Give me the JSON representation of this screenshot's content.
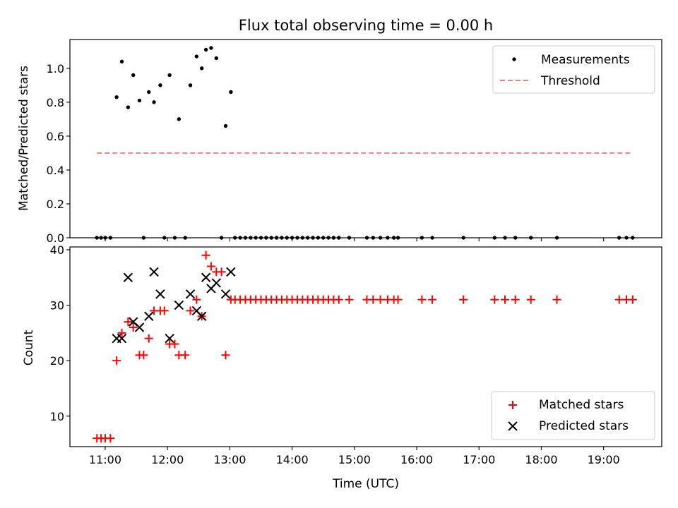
{
  "chart_data": [
    {
      "type": "scatter",
      "title": "Flux total observing time = 0.00 h",
      "xlabel": "",
      "ylabel": "Matched/Predicted stars",
      "xlim": [
        "10:26",
        "19:56"
      ],
      "ylim": [
        0.0,
        1.17
      ],
      "yticks": [
        0.0,
        0.2,
        0.4,
        0.6,
        0.8,
        1.0
      ],
      "yticklabels": [
        "0.0",
        "0.2",
        "0.4",
        "0.6",
        "0.8",
        "1.0"
      ],
      "legend": {
        "placement": "top-right",
        "entries": [
          "Measurements",
          "Threshold"
        ]
      },
      "series": [
        {
          "name": "Measurements",
          "marker": "dot",
          "color": "#000000",
          "points": [
            [
              "10:52",
              0
            ],
            [
              "10:56",
              0
            ],
            [
              "11:00",
              0
            ],
            [
              "11:05",
              0
            ],
            [
              "11:11",
              0.83
            ],
            [
              "11:16",
              1.04
            ],
            [
              "11:22",
              0.77
            ],
            [
              "11:27",
              0.96
            ],
            [
              "11:33",
              0.81
            ],
            [
              "11:37",
              0
            ],
            [
              "11:42",
              0.86
            ],
            [
              "11:47",
              0.8
            ],
            [
              "11:53",
              0.9
            ],
            [
              "11:57",
              0
            ],
            [
              "12:02",
              0.96
            ],
            [
              "12:07",
              0
            ],
            [
              "12:11",
              0.7
            ],
            [
              "12:17",
              0
            ],
            [
              "12:22",
              0.9
            ],
            [
              "12:28",
              1.07
            ],
            [
              "12:33",
              1.0
            ],
            [
              "12:37",
              1.11
            ],
            [
              "12:42",
              1.12
            ],
            [
              "12:47",
              1.06
            ],
            [
              "12:52",
              0
            ],
            [
              "12:56",
              0.66
            ],
            [
              "13:01",
              0.86
            ],
            [
              "13:05",
              0
            ],
            [
              "13:10",
              0
            ],
            [
              "13:15",
              0
            ],
            [
              "13:20",
              0
            ],
            [
              "13:25",
              0
            ],
            [
              "13:30",
              0
            ],
            [
              "13:35",
              0
            ],
            [
              "13:40",
              0
            ],
            [
              "13:45",
              0
            ],
            [
              "13:50",
              0
            ],
            [
              "13:55",
              0
            ],
            [
              "14:00",
              0
            ],
            [
              "14:05",
              0
            ],
            [
              "14:10",
              0
            ],
            [
              "14:15",
              0
            ],
            [
              "14:20",
              0
            ],
            [
              "14:25",
              0
            ],
            [
              "14:30",
              0
            ],
            [
              "14:35",
              0
            ],
            [
              "14:40",
              0
            ],
            [
              "14:45",
              0
            ],
            [
              "14:55",
              0
            ],
            [
              "15:12",
              0
            ],
            [
              "15:18",
              0
            ],
            [
              "15:25",
              0
            ],
            [
              "15:32",
              0
            ],
            [
              "15:38",
              0
            ],
            [
              "15:42",
              0
            ],
            [
              "16:05",
              0
            ],
            [
              "16:15",
              0
            ],
            [
              "16:45",
              0
            ],
            [
              "17:15",
              0
            ],
            [
              "17:25",
              0
            ],
            [
              "17:35",
              0
            ],
            [
              "17:50",
              0
            ],
            [
              "18:15",
              0
            ],
            [
              "19:15",
              0
            ],
            [
              "19:22",
              0
            ],
            [
              "19:28",
              0
            ]
          ]
        },
        {
          "name": "Threshold",
          "type": "line",
          "style": "dashed",
          "color": "#f08080",
          "points": [
            [
              "10:52",
              0.5
            ],
            [
              "19:27",
              0.5
            ]
          ]
        }
      ]
    },
    {
      "type": "scatter",
      "title": "",
      "xlabel": "Time (UTC)",
      "ylabel": "Count",
      "xlim": [
        "10:26",
        "19:56"
      ],
      "ylim": [
        4.5,
        40.5
      ],
      "yticks": [
        10,
        20,
        30,
        40
      ],
      "yticklabels": [
        "10",
        "20",
        "30",
        "40"
      ],
      "xticks": [
        "11:00",
        "12:00",
        "13:00",
        "14:00",
        "15:00",
        "16:00",
        "17:00",
        "18:00",
        "19:00"
      ],
      "legend": {
        "placement": "bottom-right",
        "entries": [
          "Matched stars",
          "Predicted stars"
        ]
      },
      "series": [
        {
          "name": "Matched stars",
          "marker": "plus",
          "color": "#ff0000",
          "points": [
            [
              "10:52",
              6
            ],
            [
              "10:56",
              6
            ],
            [
              "11:00",
              6
            ],
            [
              "11:05",
              6
            ],
            [
              "11:11",
              20
            ],
            [
              "11:16",
              25
            ],
            [
              "11:22",
              27
            ],
            [
              "11:27",
              26
            ],
            [
              "11:33",
              21
            ],
            [
              "11:37",
              21
            ],
            [
              "11:42",
              24
            ],
            [
              "11:47",
              29
            ],
            [
              "11:53",
              29
            ],
            [
              "11:57",
              29
            ],
            [
              "12:02",
              23
            ],
            [
              "12:07",
              23
            ],
            [
              "12:11",
              21
            ],
            [
              "12:17",
              21
            ],
            [
              "12:22",
              29
            ],
            [
              "12:28",
              31
            ],
            [
              "12:33",
              28
            ],
            [
              "12:37",
              39
            ],
            [
              "12:42",
              37
            ],
            [
              "12:47",
              36
            ],
            [
              "12:52",
              36
            ],
            [
              "12:56",
              21
            ],
            [
              "13:01",
              31
            ],
            [
              "13:05",
              31
            ],
            [
              "13:10",
              31
            ],
            [
              "13:15",
              31
            ],
            [
              "13:20",
              31
            ],
            [
              "13:25",
              31
            ],
            [
              "13:30",
              31
            ],
            [
              "13:35",
              31
            ],
            [
              "13:40",
              31
            ],
            [
              "13:45",
              31
            ],
            [
              "13:50",
              31
            ],
            [
              "13:55",
              31
            ],
            [
              "14:00",
              31
            ],
            [
              "14:05",
              31
            ],
            [
              "14:10",
              31
            ],
            [
              "14:15",
              31
            ],
            [
              "14:20",
              31
            ],
            [
              "14:25",
              31
            ],
            [
              "14:30",
              31
            ],
            [
              "14:35",
              31
            ],
            [
              "14:40",
              31
            ],
            [
              "14:45",
              31
            ],
            [
              "14:55",
              31
            ],
            [
              "15:12",
              31
            ],
            [
              "15:18",
              31
            ],
            [
              "15:25",
              31
            ],
            [
              "15:32",
              31
            ],
            [
              "15:38",
              31
            ],
            [
              "15:42",
              31
            ],
            [
              "16:05",
              31
            ],
            [
              "16:15",
              31
            ],
            [
              "16:45",
              31
            ],
            [
              "17:15",
              31
            ],
            [
              "17:25",
              31
            ],
            [
              "17:35",
              31
            ],
            [
              "17:50",
              31
            ],
            [
              "18:15",
              31
            ],
            [
              "19:15",
              31
            ],
            [
              "19:22",
              31
            ],
            [
              "19:28",
              31
            ]
          ]
        },
        {
          "name": "Predicted stars",
          "marker": "x",
          "color": "#000000",
          "points": [
            [
              "11:11",
              24
            ],
            [
              "11:16",
              24
            ],
            [
              "11:22",
              35
            ],
            [
              "11:27",
              27
            ],
            [
              "11:33",
              26
            ],
            [
              "11:42",
              28
            ],
            [
              "11:47",
              36
            ],
            [
              "11:53",
              32
            ],
            [
              "12:02",
              24
            ],
            [
              "12:11",
              30
            ],
            [
              "12:22",
              32
            ],
            [
              "12:28",
              29
            ],
            [
              "12:33",
              28
            ],
            [
              "12:37",
              35
            ],
            [
              "12:42",
              33
            ],
            [
              "12:47",
              34
            ],
            [
              "12:56",
              32
            ],
            [
              "13:01",
              36
            ]
          ]
        }
      ]
    }
  ]
}
